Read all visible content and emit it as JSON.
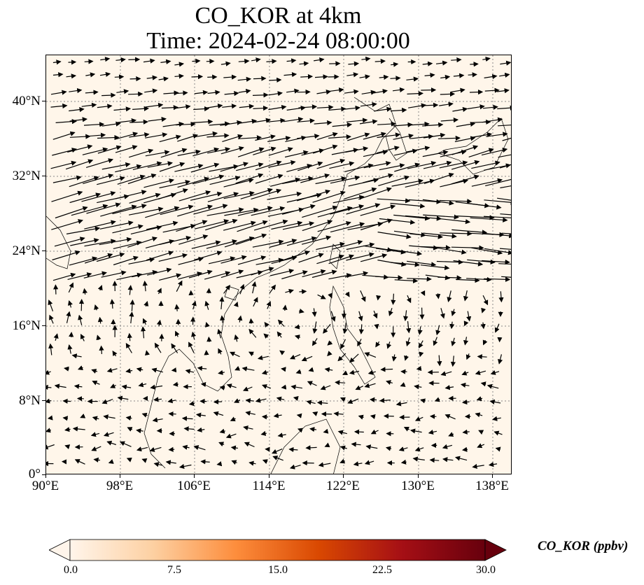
{
  "title": {
    "line1": "CO_KOR at 4km",
    "line2": "Time: 2024-02-24 08:00:00"
  },
  "axes": {
    "lat_ticks": [
      "40°N",
      "32°N",
      "24°N",
      "16°N",
      "8°N",
      "0°"
    ],
    "lon_ticks": [
      "90°E",
      "98°E",
      "106°E",
      "114°E",
      "122°E",
      "130°E",
      "138°E"
    ]
  },
  "map": {
    "background_color": "#fff6ea",
    "gridline_style": "dotted",
    "coastline_color": "#000000",
    "vector_field": "wind arrows"
  },
  "colorbar": {
    "label": "CO_KOR (ppbv)",
    "ticks": [
      "0.0",
      "7.5",
      "15.0",
      "22.5",
      "30.0"
    ],
    "colormap": [
      "#fff5eb",
      "#fdd0a2",
      "#fd8d3c",
      "#d94801",
      "#a50f15",
      "#67000d"
    ],
    "extend": "both"
  }
}
